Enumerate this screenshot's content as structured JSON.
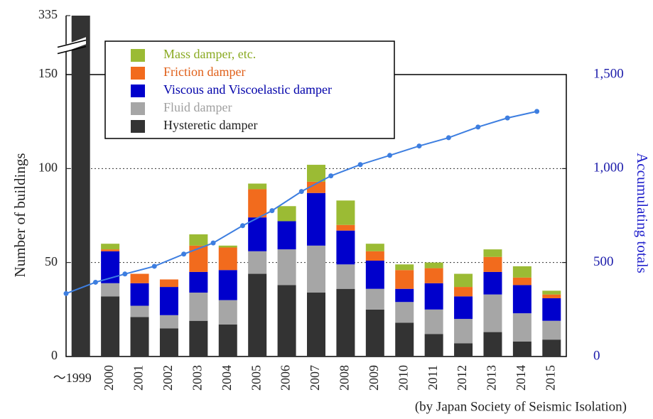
{
  "chart_data": {
    "type": "stacked_bar_line",
    "y_label": "Number of buildings",
    "y2_label": "Accumulating totals",
    "source": "(by Japan Society of Seismic Isolation)",
    "categories": [
      "～1999",
      "2000",
      "2001",
      "2002",
      "2003",
      "2004",
      "2005",
      "2006",
      "2007",
      "2008",
      "2009",
      "2010",
      "2011",
      "2012",
      "2013",
      "2014",
      "2015"
    ],
    "series": [
      {
        "name": "Mass damper, etc.",
        "color": "#9bbb34",
        "label_color": "#8aaa22",
        "values": [
          0,
          3,
          0,
          0,
          6,
          1,
          3,
          8,
          9,
          13,
          4,
          3,
          3,
          7,
          4,
          6,
          2
        ]
      },
      {
        "name": "Friction damper",
        "color": "#f26b1d",
        "label_color": "#e0601a",
        "values": [
          0,
          1,
          5,
          4,
          14,
          12,
          15,
          0,
          6,
          3,
          5,
          10,
          8,
          5,
          8,
          4,
          2
        ]
      },
      {
        "name": "Viscous and Viscoelastic damper",
        "color": "#0000cc",
        "label_color": "#0000aa",
        "values": [
          0,
          17,
          12,
          15,
          11,
          16,
          18,
          15,
          28,
          18,
          15,
          7,
          14,
          12,
          12,
          15,
          12
        ]
      },
      {
        "name": "Fluid damper",
        "color": "#a6a6a6",
        "label_color": "#a0a0a0",
        "values": [
          0,
          7,
          6,
          7,
          15,
          13,
          12,
          19,
          25,
          13,
          11,
          11,
          13,
          13,
          20,
          15,
          10
        ]
      },
      {
        "name": "Hysteretic damper",
        "color": "#333333",
        "label_color": "#222222",
        "values": [
          335,
          32,
          21,
          15,
          19,
          17,
          44,
          38,
          34,
          36,
          25,
          18,
          12,
          7,
          13,
          8,
          9
        ]
      },
      {
        "name": "Accumulating totals",
        "type": "line",
        "axis": "y2",
        "color": "#3d7ee0",
        "values": [
          335,
          395,
          439,
          480,
          545,
          604,
          696,
          776,
          878,
          961,
          1021,
          1070,
          1120,
          1164,
          1221,
          1269,
          1304
        ]
      }
    ],
    "ylim": [
      0,
      150
    ],
    "yticks": [
      0,
      50,
      100,
      150,
      335
    ],
    "axis_break": true,
    "y2lim": [
      0,
      1500
    ],
    "y2ticks": [
      0,
      {
        "value": 500,
        "label": "500"
      },
      {
        "value": 1000,
        "label": "1,000"
      },
      {
        "value": 1500,
        "label": "1,500"
      }
    ],
    "grid": true,
    "legend": "top-left"
  }
}
